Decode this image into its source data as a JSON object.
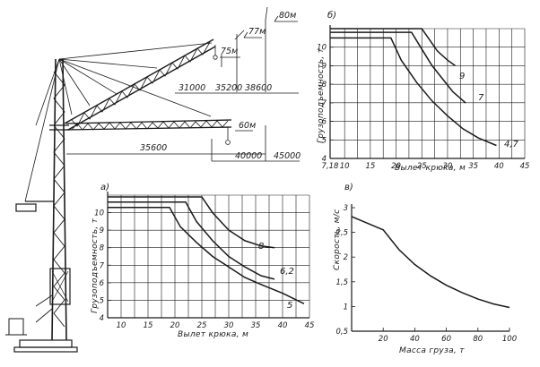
{
  "dimensions": {
    "jib_heights": [
      "75м",
      "77м",
      "80м"
    ],
    "jib_reach_raised": [
      "31000",
      "35200",
      "38600"
    ],
    "hook_height_horizontal": "60м",
    "jib_reach_horizontal": [
      "35600",
      "40000",
      "45000"
    ]
  },
  "panels": {
    "a": {
      "tag": "а)",
      "curve_labels": [
        "8",
        "6,2",
        "5"
      ]
    },
    "b": {
      "tag": "б)",
      "curve_labels": [
        "9",
        "7",
        "4,7"
      ]
    },
    "v": {
      "tag": "в)"
    }
  },
  "chart_data": [
    {
      "id": "a",
      "type": "line",
      "title": "",
      "xlabel": "Вылет крюка, м",
      "ylabel": "Грузоподъемность, т",
      "xlim": [
        7.5,
        45
      ],
      "ylim": [
        4,
        11
      ],
      "xticks": [
        "10",
        "15",
        "20",
        "25",
        "30",
        "35",
        "40",
        "45"
      ],
      "yticks": [
        "4",
        "5",
        "6",
        "7",
        "8",
        "9",
        "10"
      ],
      "grid": true,
      "series": [
        {
          "name": "8",
          "x": [
            7.5,
            25,
            27,
            30,
            33,
            36,
            38.5
          ],
          "y": [
            10.9,
            10.9,
            10.0,
            9.0,
            8.4,
            8.1,
            8.0
          ]
        },
        {
          "name": "6,2",
          "x": [
            7.5,
            22,
            24,
            27,
            30,
            33,
            36,
            38.5
          ],
          "y": [
            10.6,
            10.6,
            9.5,
            8.4,
            7.5,
            6.9,
            6.4,
            6.2
          ]
        },
        {
          "name": "5",
          "x": [
            7.5,
            19,
            21,
            24,
            27,
            30,
            33,
            36,
            40,
            44
          ],
          "y": [
            10.3,
            10.3,
            9.2,
            8.3,
            7.5,
            6.9,
            6.3,
            5.9,
            5.4,
            4.8
          ]
        }
      ]
    },
    {
      "id": "b",
      "type": "line",
      "title": "",
      "xlabel": "Вылет крюка, м",
      "ylabel": "Грузоподъемность, т",
      "xlim": [
        7.18,
        45
      ],
      "ylim": [
        4,
        11
      ],
      "xticks": [
        "7,18",
        "10",
        "15",
        "20",
        "25",
        "30",
        "35",
        "40",
        "45"
      ],
      "yticks": [
        "4",
        "5",
        "6",
        "7",
        "8",
        "9",
        "10"
      ],
      "grid": true,
      "series": [
        {
          "name": "9",
          "x": [
            7.18,
            25,
            26.5,
            28,
            30,
            31.5
          ],
          "y": [
            11.0,
            11.0,
            10.4,
            9.8,
            9.3,
            9.0
          ]
        },
        {
          "name": "7",
          "x": [
            7.18,
            23,
            25,
            27,
            29,
            31,
            33.5
          ],
          "y": [
            10.8,
            10.8,
            9.9,
            9.0,
            8.3,
            7.6,
            7.0
          ]
        },
        {
          "name": "4,7",
          "x": [
            7.18,
            19,
            21,
            24,
            27,
            30,
            33,
            36,
            39.5
          ],
          "y": [
            10.5,
            10.5,
            9.3,
            8.1,
            7.1,
            6.3,
            5.6,
            5.1,
            4.7
          ]
        }
      ]
    },
    {
      "id": "v",
      "type": "line",
      "title": "",
      "xlabel": "Масса груза, т",
      "ylabel": "Скорость, м/с",
      "xlim": [
        0,
        100
      ],
      "ylim": [
        0.5,
        3
      ],
      "xticks": [
        "20",
        "40",
        "60",
        "80",
        "100"
      ],
      "yticks": [
        "0,5",
        "1",
        "1,5",
        "2",
        "2,5",
        "3"
      ],
      "grid": false,
      "series": [
        {
          "name": "",
          "x": [
            0,
            20,
            30,
            40,
            50,
            60,
            70,
            80,
            90,
            100
          ],
          "y": [
            2.82,
            2.55,
            2.15,
            1.85,
            1.62,
            1.43,
            1.28,
            1.15,
            1.05,
            0.98
          ]
        }
      ]
    }
  ]
}
